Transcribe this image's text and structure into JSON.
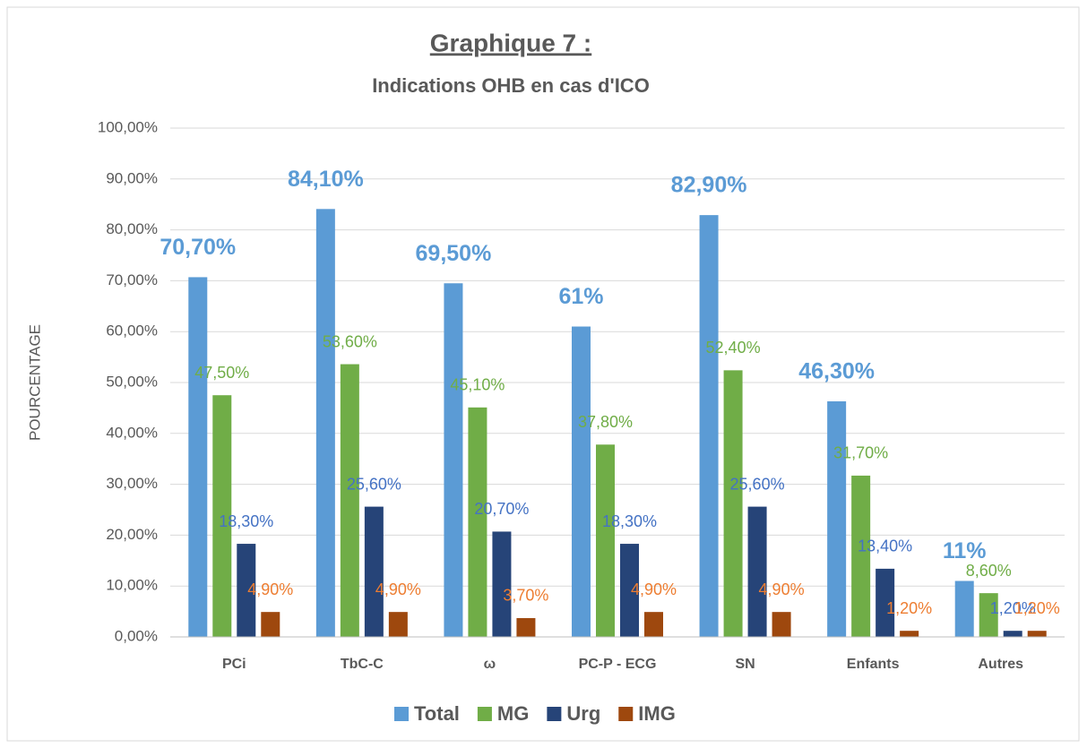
{
  "chart_data": {
    "type": "bar",
    "title": "Graphique 7 :",
    "subtitle": "Indications OHB en cas d'ICO",
    "y_label": "POURCENTAGE",
    "categories": [
      "PCi",
      "TbC-C",
      "ω",
      "PC-P - ECG",
      "SN",
      "Enfants",
      "Autres"
    ],
    "series": [
      {
        "name": "Total",
        "color": "#5b9bd5",
        "label_color": "#5b9bd5",
        "values": [
          70.7,
          84.1,
          69.5,
          61,
          82.9,
          46.3,
          11
        ],
        "value_labels": [
          "70,70%",
          "84,10%",
          "69,50%",
          "61%",
          "82,90%",
          "46,30%",
          "11%"
        ]
      },
      {
        "name": "MG",
        "color": "#70ad47",
        "label_color": "#70ad47",
        "values": [
          47.5,
          53.6,
          45.1,
          37.8,
          52.4,
          31.7,
          8.6
        ],
        "value_labels": [
          "47,50%",
          "53,60%",
          "45,10%",
          "37,80%",
          "52,40%",
          "31,70%",
          "8,60%"
        ]
      },
      {
        "name": "Urg",
        "color": "#264478",
        "label_color": "#4472c4",
        "values": [
          18.3,
          25.6,
          20.7,
          18.3,
          25.6,
          13.4,
          1.2
        ],
        "value_labels": [
          "18,30%",
          "25,60%",
          "20,70%",
          "18,30%",
          "25,60%",
          "13,40%",
          "1,20%"
        ]
      },
      {
        "name": "IMG",
        "color": "#9e480e",
        "label_color": "#ed7d31",
        "values": [
          4.9,
          4.9,
          3.7,
          4.9,
          4.9,
          1.2,
          1.2
        ],
        "value_labels": [
          "4,90%",
          "4,90%",
          "3,70%",
          "4,90%",
          "4,90%",
          "1,20%",
          "1,20%"
        ]
      }
    ],
    "ylim": [
      0,
      100
    ],
    "yticks": [
      {
        "value": 0,
        "label": "0,00%"
      },
      {
        "value": 10,
        "label": "10,00%"
      },
      {
        "value": 20,
        "label": "20,00%"
      },
      {
        "value": 30,
        "label": "30,00%"
      },
      {
        "value": 40,
        "label": "40,00%"
      },
      {
        "value": 50,
        "label": "50,00%"
      },
      {
        "value": 60,
        "label": "60,00%"
      },
      {
        "value": 70,
        "label": "70,00%"
      },
      {
        "value": 80,
        "label": "80,00%"
      },
      {
        "value": 90,
        "label": "90,00%"
      },
      {
        "value": 100,
        "label": "100,00%"
      }
    ],
    "grid": true,
    "legend": "bottom"
  }
}
